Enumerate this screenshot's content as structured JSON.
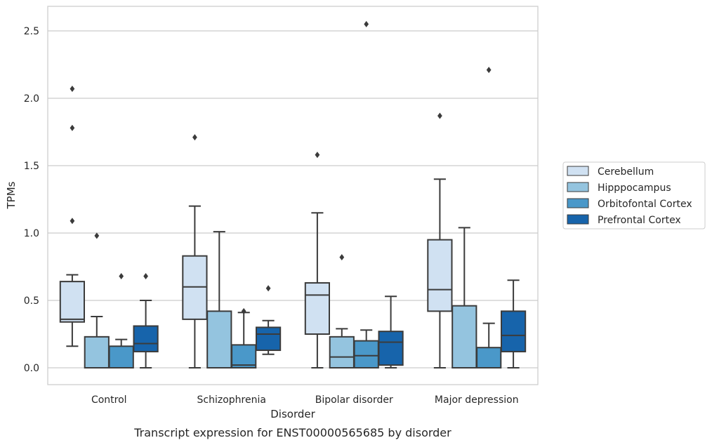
{
  "chart_data": {
    "type": "boxplot",
    "caption": "Transcript expression for ENST00000565685 by disorder",
    "xlabel": "Disorder",
    "ylabel": "TPMs",
    "ylim": [
      -0.125,
      2.68
    ],
    "yticks": [
      0.0,
      0.5,
      1.0,
      1.5,
      2.0,
      2.5
    ],
    "ytick_labels": [
      "0.0",
      "0.5",
      "1.0",
      "1.5",
      "2.0",
      "2.5"
    ],
    "grid": true,
    "legend_position": "right",
    "categories": [
      "Control",
      "Schizophrenia",
      "Bipolar disorder",
      "Major depression"
    ],
    "series": [
      {
        "name": "Cerebellum",
        "color": "#d0e1f2",
        "boxes": [
          {
            "whislo": 0.16,
            "q1": 0.34,
            "med": 0.36,
            "q3": 0.64,
            "whishi": 0.69,
            "fliers": [
              1.09,
              1.78,
              2.07
            ]
          },
          {
            "whislo": 0.0,
            "q1": 0.36,
            "med": 0.6,
            "q3": 0.83,
            "whishi": 1.2,
            "fliers": [
              1.71
            ]
          },
          {
            "whislo": 0.0,
            "q1": 0.25,
            "med": 0.54,
            "q3": 0.63,
            "whishi": 1.15,
            "fliers": [
              1.58
            ]
          },
          {
            "whislo": 0.0,
            "q1": 0.42,
            "med": 0.58,
            "q3": 0.95,
            "whishi": 1.4,
            "fliers": [
              1.87
            ]
          }
        ]
      },
      {
        "name": "Hipppocampus",
        "color": "#94c4df",
        "boxes": [
          {
            "whislo": 0.0,
            "q1": 0.0,
            "med": 0.0,
            "q3": 0.23,
            "whishi": 0.38,
            "fliers": [
              0.98
            ]
          },
          {
            "whislo": 0.0,
            "q1": 0.0,
            "med": 0.0,
            "q3": 0.42,
            "whishi": 1.01,
            "fliers": []
          },
          {
            "whislo": 0.0,
            "q1": 0.0,
            "med": 0.08,
            "q3": 0.23,
            "whishi": 0.29,
            "fliers": [
              0.82
            ]
          },
          {
            "whislo": 0.0,
            "q1": 0.0,
            "med": 0.0,
            "q3": 0.46,
            "whishi": 1.04,
            "fliers": []
          }
        ]
      },
      {
        "name": "Orbitofontal Cortex",
        "color": "#4a98c9",
        "boxes": [
          {
            "whislo": 0.0,
            "q1": 0.0,
            "med": 0.0,
            "q3": 0.16,
            "whishi": 0.21,
            "fliers": [
              0.68
            ]
          },
          {
            "whislo": 0.0,
            "q1": 0.0,
            "med": 0.02,
            "q3": 0.17,
            "whishi": 0.41,
            "fliers": [
              0.42
            ]
          },
          {
            "whislo": 0.0,
            "q1": 0.0,
            "med": 0.09,
            "q3": 0.2,
            "whishi": 0.28,
            "fliers": [
              2.55
            ]
          },
          {
            "whislo": 0.0,
            "q1": 0.0,
            "med": 0.0,
            "q3": 0.15,
            "whishi": 0.33,
            "fliers": [
              2.21
            ]
          }
        ]
      },
      {
        "name": "Prefrontal Cortex",
        "color": "#1764ab",
        "boxes": [
          {
            "whislo": 0.0,
            "q1": 0.12,
            "med": 0.18,
            "q3": 0.31,
            "whishi": 0.5,
            "fliers": [
              0.68
            ]
          },
          {
            "whislo": 0.1,
            "q1": 0.13,
            "med": 0.25,
            "q3": 0.3,
            "whishi": 0.35,
            "fliers": [
              0.59
            ]
          },
          {
            "whislo": 0.0,
            "q1": 0.02,
            "med": 0.19,
            "q3": 0.27,
            "whishi": 0.53,
            "fliers": []
          },
          {
            "whislo": 0.0,
            "q1": 0.12,
            "med": 0.24,
            "q3": 0.42,
            "whishi": 0.65,
            "fliers": []
          }
        ]
      }
    ]
  }
}
